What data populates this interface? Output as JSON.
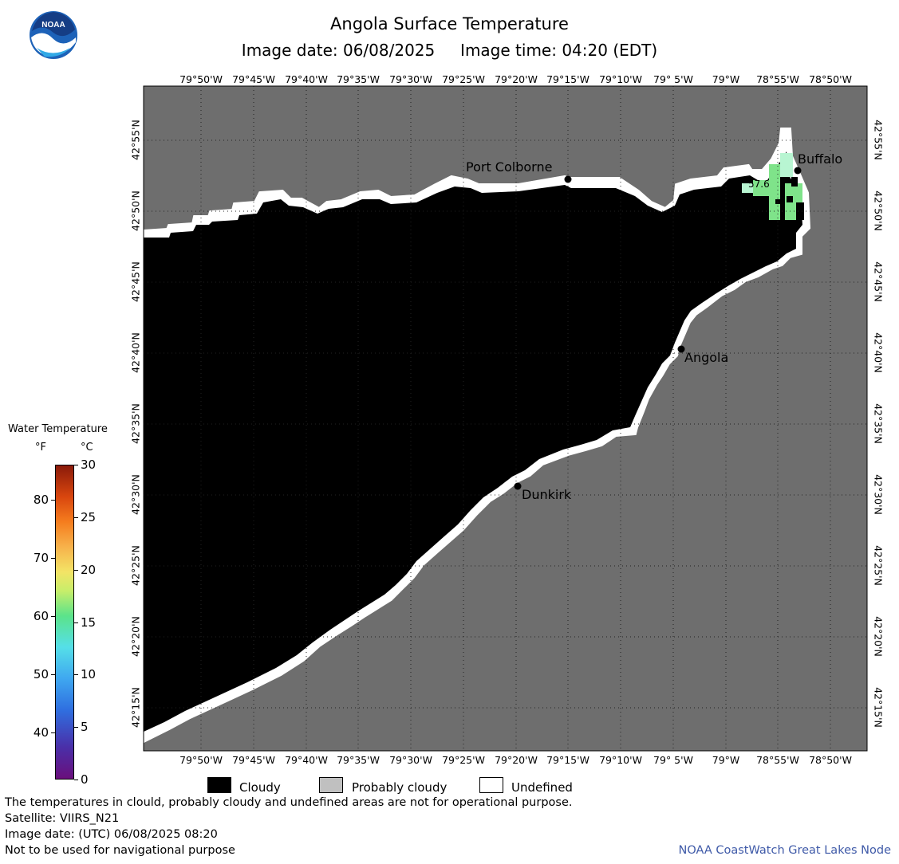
{
  "header": {
    "title": "Angola Surface Temperature",
    "subtitle": "Image date: 06/08/2025     Image time: 04:20 (EDT)"
  },
  "logo": {
    "text": "NOAA",
    "icon": "noaa-logo-icon"
  },
  "map": {
    "lon_labels": [
      "79°50'W",
      "79°45'W",
      "79°40'W",
      "79°35'W",
      "79°30'W",
      "79°25'W",
      "79°20'W",
      "79°15'W",
      "79°10'W",
      "79° 5'W",
      "79°W",
      "78°55'W",
      "78°50'W"
    ],
    "lat_labels": [
      "42°55'N",
      "42°50'N",
      "42°45'N",
      "42°40'N",
      "42°35'N",
      "42°30'N",
      "42°25'N",
      "42°20'N",
      "42°15'N"
    ],
    "cities": [
      {
        "name": "Port Colborne"
      },
      {
        "name": "Buffalo"
      },
      {
        "name": "Angola"
      },
      {
        "name": "Dunkirk"
      }
    ],
    "temp_reading": "57.6",
    "colors": {
      "land": "#6e6e6e",
      "cloudy": "#000000",
      "undefined": "#ffffff",
      "warm_water": "#7fe38a",
      "cool_water": "#b8f5d2"
    }
  },
  "legend": {
    "title": "Water Temperature",
    "unit_f": "°F",
    "unit_c": "°C",
    "f_ticks": [
      "80",
      "70",
      "60",
      "50",
      "40"
    ],
    "c_ticks": [
      "30",
      "25",
      "20",
      "15",
      "10",
      "5",
      "0"
    ]
  },
  "key": {
    "items": [
      {
        "label": "Cloudy",
        "color": "#000000"
      },
      {
        "label": "Probably cloudy",
        "color": "#c0c0c0"
      },
      {
        "label": "Undefined",
        "color": "#ffffff"
      }
    ]
  },
  "footer": {
    "disclaimer": "The temperatures in clould, probably cloudy and undefined areas are not for operational purpose.",
    "satellite": "Satellite: VIIRS_N21",
    "utc_date": "Image date: (UTC) 06/08/2025  08:20",
    "nav_warning": "Not to be used for navigational purpose",
    "credit": "NOAA CoastWatch Great Lakes Node"
  }
}
